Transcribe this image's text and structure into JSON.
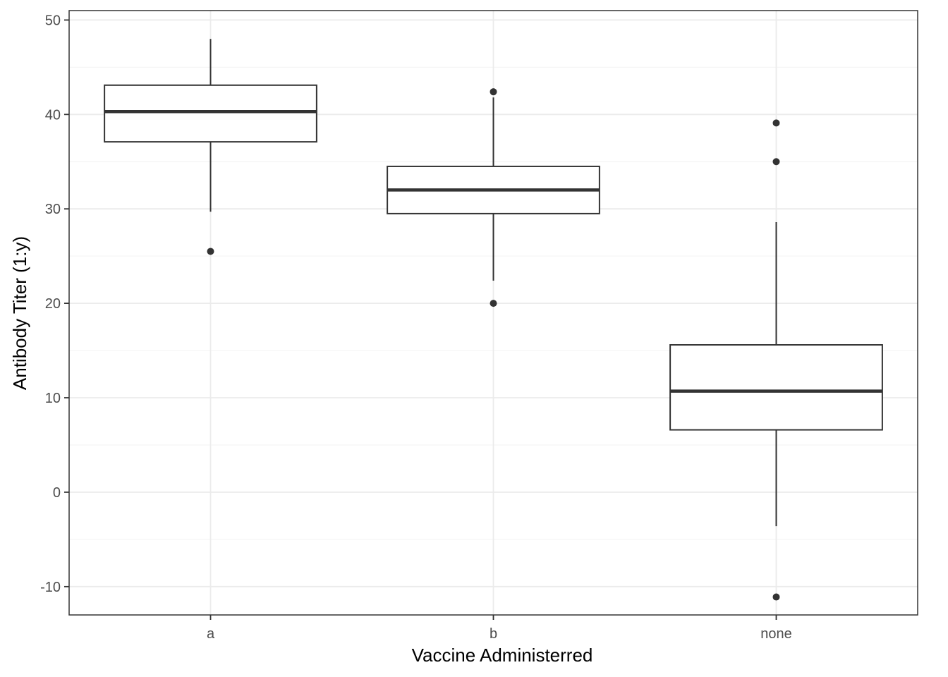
{
  "chart_data": {
    "type": "box",
    "title": "",
    "xlabel": "Vaccine Administerred",
    "ylabel": "Antibody Titer (1:y)",
    "categories": [
      "a",
      "b",
      "none"
    ],
    "ylim": [
      -13,
      51
    ],
    "y_ticks": [
      -10,
      0,
      10,
      20,
      30,
      40,
      50
    ],
    "grid": true,
    "boxes": [
      {
        "category": "a",
        "whisker_low": 29.7,
        "q1": 37.1,
        "median": 40.3,
        "q3": 43.1,
        "whisker_high": 48.0,
        "outliers": [
          25.5
        ]
      },
      {
        "category": "b",
        "whisker_low": 22.4,
        "q1": 29.5,
        "median": 32.0,
        "q3": 34.5,
        "whisker_high": 41.8,
        "outliers": [
          42.4,
          20.0
        ]
      },
      {
        "category": "none",
        "whisker_low": -3.6,
        "q1": 6.6,
        "median": 10.7,
        "q3": 15.6,
        "whisker_high": 28.6,
        "outliers": [
          39.1,
          35.0,
          -11.1
        ]
      }
    ],
    "colors": {
      "box_line": "#333333",
      "fill": "#ffffff",
      "grid_major": "#ebebeb",
      "grid_minor": "#f5f5f5",
      "panel_border": "#333333",
      "outlier": "#333333"
    }
  }
}
